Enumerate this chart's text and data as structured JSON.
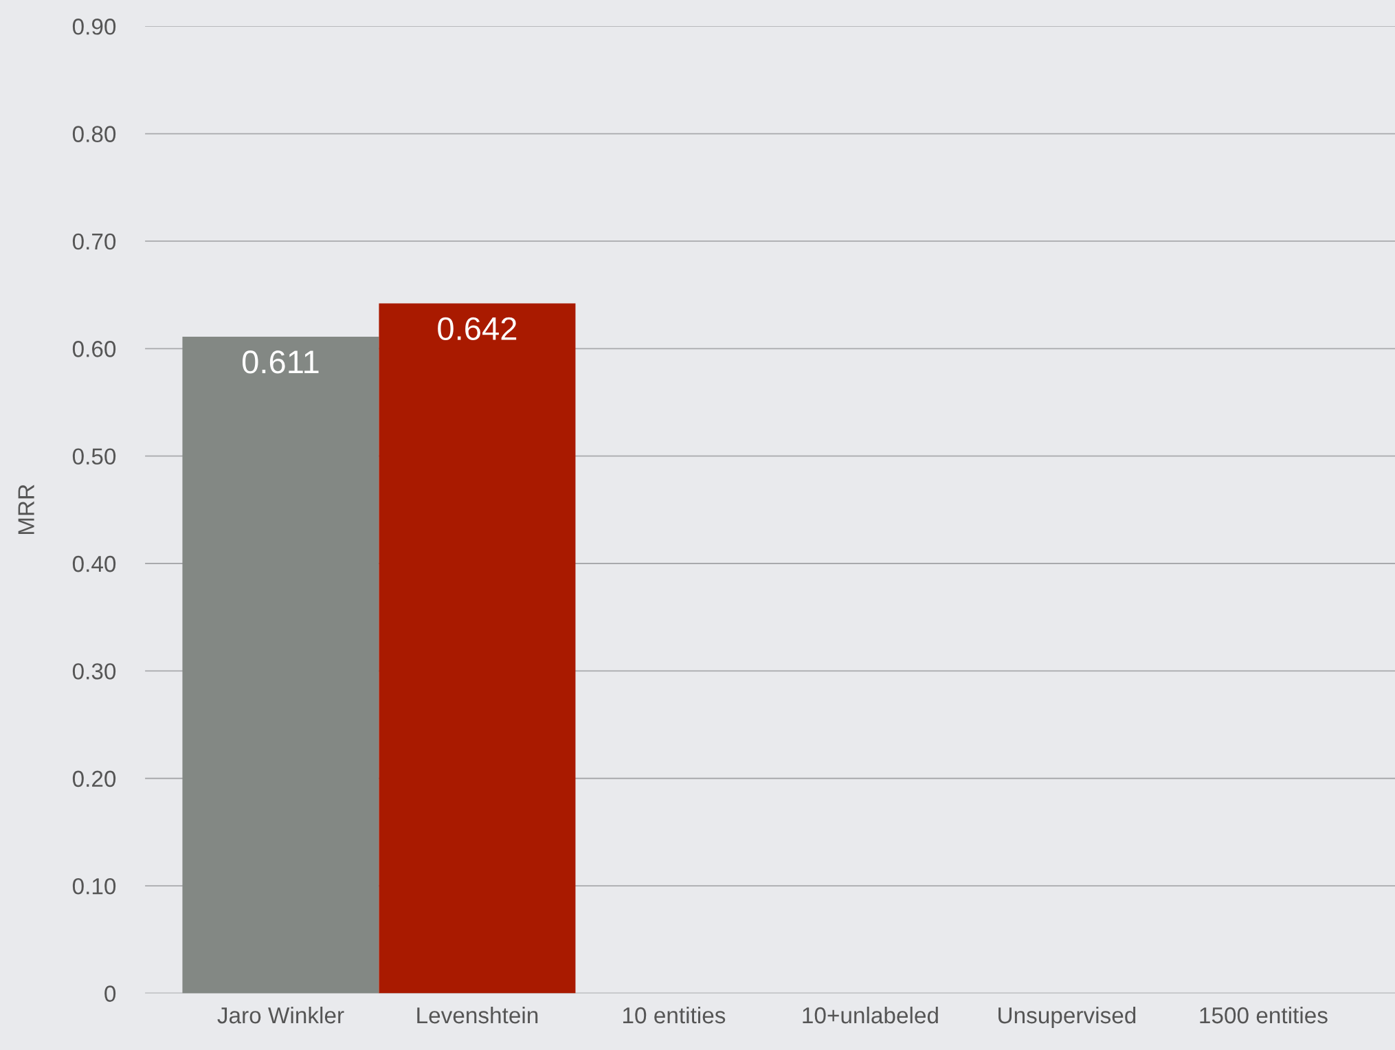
{
  "chart_data": {
    "type": "bar",
    "ylabel": "MRR",
    "categories": [
      "Jaro Winkler",
      "Levenshtein",
      "10 entities",
      "10+unlabeled",
      "Unsupervised",
      "1500 entities"
    ],
    "values": [
      0.611,
      0.642,
      null,
      null,
      null,
      null
    ],
    "colors": [
      "#838884",
      "#a91a00",
      null,
      null,
      null,
      null
    ],
    "ylim": [
      0,
      0.9
    ],
    "yticks": [
      {
        "value": 0,
        "label": "0"
      },
      {
        "value": 0.1,
        "label": "0.10"
      },
      {
        "value": 0.2,
        "label": "0.20"
      },
      {
        "value": 0.3,
        "label": "0.30"
      },
      {
        "value": 0.4,
        "label": "0.40"
      },
      {
        "value": 0.5,
        "label": "0.50"
      },
      {
        "value": 0.6,
        "label": "0.60"
      },
      {
        "value": 0.7,
        "label": "0.70"
      },
      {
        "value": 0.8,
        "label": "0.80"
      },
      {
        "value": 0.9,
        "label": "0.90"
      }
    ],
    "grid": "y",
    "data_labels": true
  }
}
